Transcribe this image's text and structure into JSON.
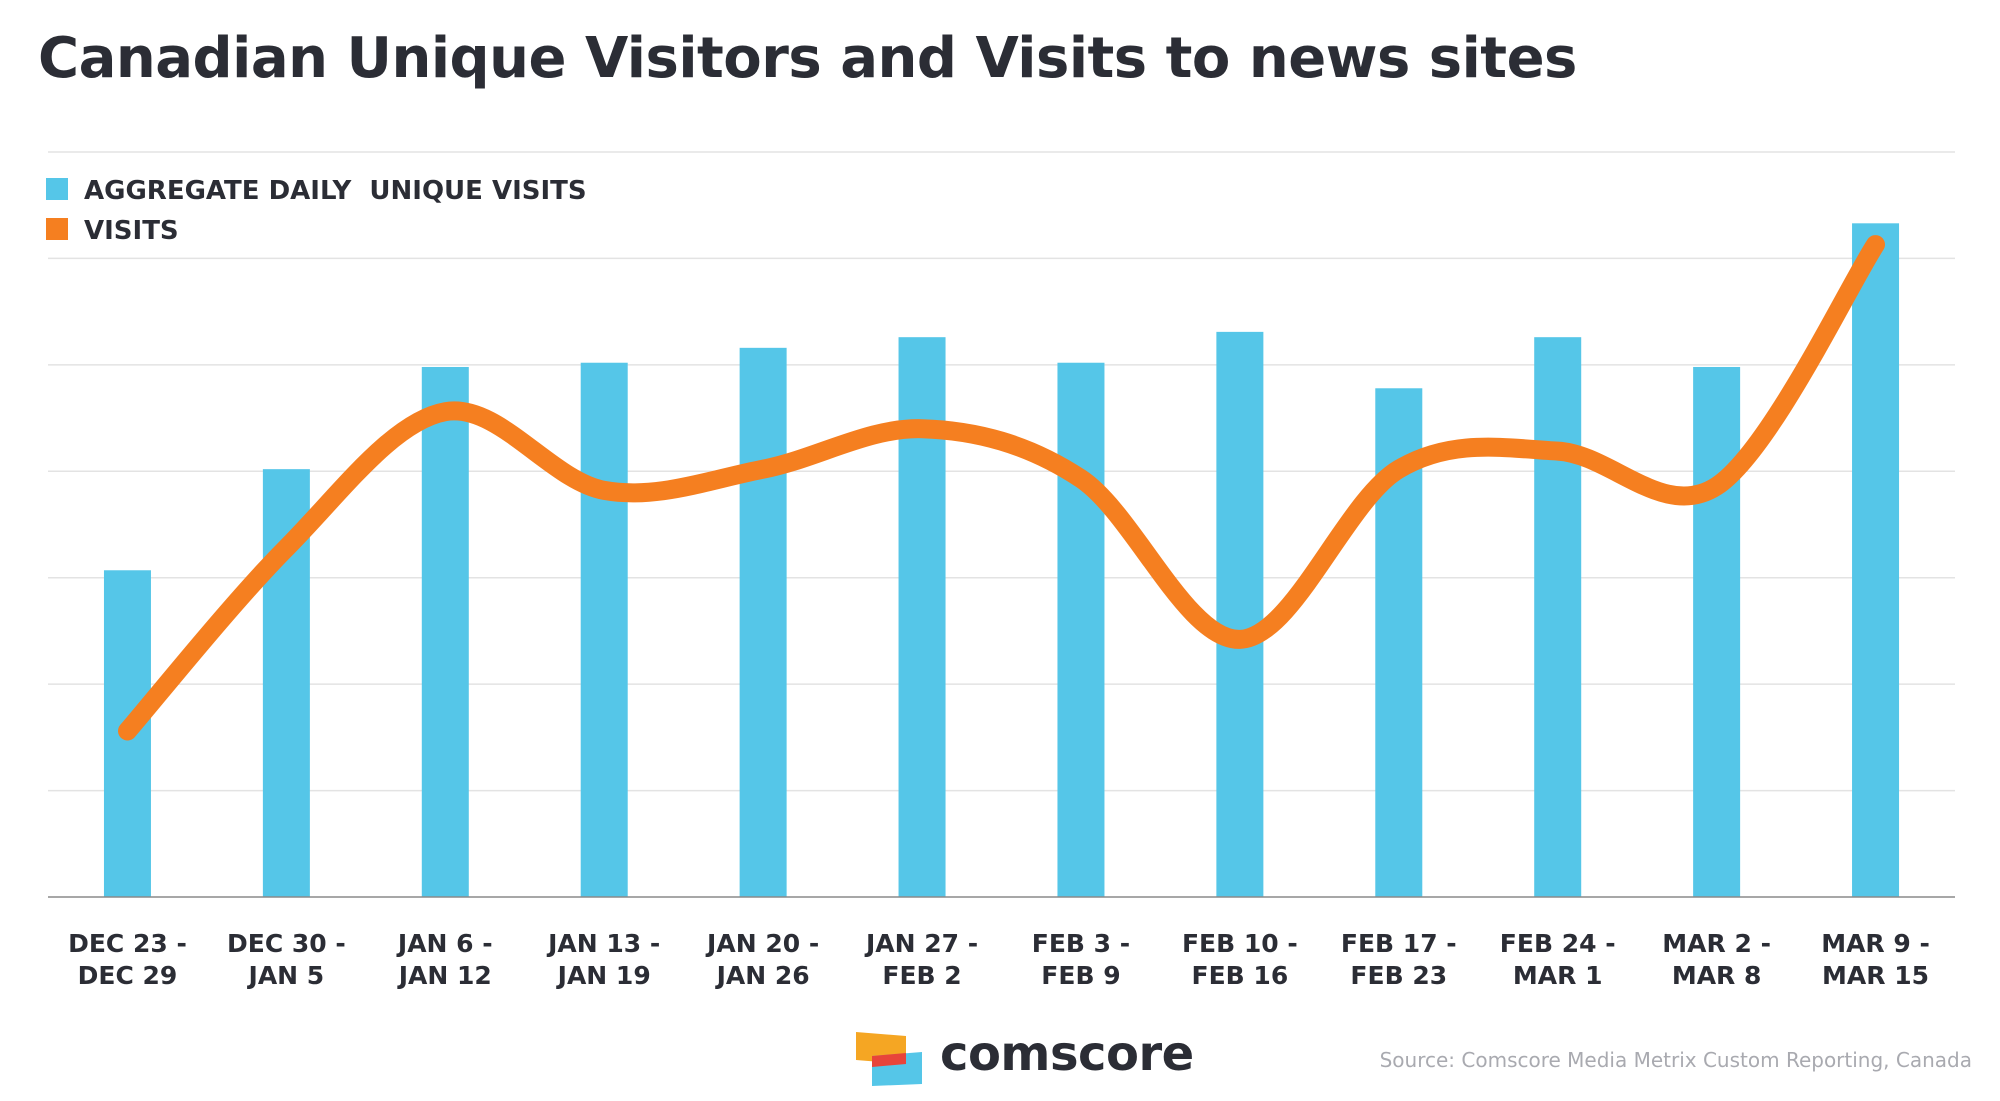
{
  "title": "Canadian Unique Visitors and Visits to news sites",
  "source": "Source: Comscore Media Metrix Custom Reporting, Canada",
  "brand": {
    "name": "comscore",
    "logo_icon": "comscore-logo-icon",
    "colors": [
      "#f5a623",
      "#e8443a",
      "#55c6e8"
    ]
  },
  "chart_data": {
    "type": "bar",
    "title": "Canadian Unique Visitors and Visits to news sites",
    "categories": [
      [
        "DEC 23 -",
        "DEC 29"
      ],
      [
        "DEC 30 -",
        "JAN 5"
      ],
      [
        "JAN 6 -",
        "JAN 12"
      ],
      [
        "JAN 13 -",
        "JAN 19"
      ],
      [
        "JAN 20 -",
        "JAN 26"
      ],
      [
        "JAN 27 -",
        "FEB 2"
      ],
      [
        "FEB 3 -",
        "FEB 9"
      ],
      [
        "FEB 10 -",
        "FEB 16"
      ],
      [
        "FEB 17 -",
        "FEB 23"
      ],
      [
        "FEB 24 -",
        "MAR 1"
      ],
      [
        "MAR 2 -",
        "MAR 8"
      ],
      [
        "MAR 9 -",
        "MAR 15"
      ]
    ],
    "series": [
      {
        "name": "AGGREGATE DAILY  UNIQUE VISITS",
        "type": "bar",
        "color": "#55c6e8",
        "values": [
          3.07,
          4.02,
          4.98,
          5.02,
          5.16,
          5.26,
          5.02,
          5.31,
          4.78,
          5.26,
          4.98,
          6.33
        ]
      },
      {
        "name": "VISITS",
        "type": "line",
        "color": "#f57f20",
        "values": [
          1.56,
          3.28,
          4.56,
          3.82,
          4.02,
          4.4,
          3.93,
          2.42,
          4.02,
          4.19,
          3.86,
          6.13
        ]
      }
    ],
    "ylim": [
      0,
      7
    ],
    "grid": true,
    "y_tick_labels": false,
    "legend": "top-left"
  }
}
